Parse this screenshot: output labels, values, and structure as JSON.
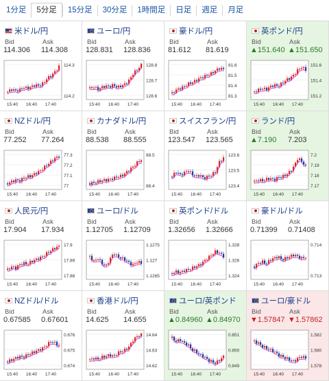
{
  "tabs": [
    "1分足",
    "5分足",
    "15分足",
    "30分足",
    "1時間足",
    "日足",
    "週足",
    "月足"
  ],
  "active_tab": 1,
  "colors": {
    "up_candle": "#e02020",
    "down_candle": "#1a3f9b",
    "ma_line": "#c33cc3",
    "link": "#1c3f8c",
    "up_text": "#2a7a2a",
    "down_text": "#c42222"
  },
  "labels": {
    "bid": "Bid",
    "ask": "Ask"
  },
  "x_ticks": [
    "15:40",
    "16:40",
    "17:40"
  ],
  "pairs": [
    {
      "name": "米ドル/円",
      "flag": "us",
      "bid": "114.306",
      "ask": "114.308",
      "trend": "none",
      "y_ticks": [
        "114.3",
        "114.2"
      ],
      "shape": [
        0.15,
        0.22,
        0.18,
        0.2,
        0.28,
        0.25,
        0.3,
        0.35,
        0.33,
        0.4,
        0.55,
        0.62,
        0.75,
        0.9
      ]
    },
    {
      "name": "ユーロ/円",
      "flag": "eu",
      "bid": "128.831",
      "ask": "128.836",
      "trend": "none",
      "y_ticks": [
        "128.8",
        "128.7",
        "128.6"
      ],
      "shape": [
        0.25,
        0.3,
        0.22,
        0.28,
        0.32,
        0.3,
        0.35,
        0.28,
        0.33,
        0.38,
        0.5,
        0.7,
        0.8,
        0.95
      ]
    },
    {
      "name": "豪ドル/円",
      "flag": "au",
      "bid": "81.612",
      "ask": "81.619",
      "trend": "none",
      "y_ticks": [
        "81.6",
        "81.5",
        "81.4",
        "81.3"
      ],
      "shape": [
        0.1,
        0.2,
        0.25,
        0.3,
        0.38,
        0.42,
        0.48,
        0.55,
        0.6,
        0.65,
        0.7,
        0.78,
        0.85,
        0.82
      ]
    },
    {
      "name": "英ポンド/円",
      "flag": "gb",
      "bid": "▲151.640",
      "ask": "▲151.650",
      "trend": "up",
      "y_ticks": [
        "151.6",
        "151.4",
        "151.2"
      ],
      "shape": [
        0.15,
        0.2,
        0.25,
        0.22,
        0.3,
        0.35,
        0.32,
        0.4,
        0.5,
        0.55,
        0.65,
        0.8,
        0.88,
        0.8
      ]
    },
    {
      "name": "NZドル/円",
      "flag": "nz",
      "bid": "77.252",
      "ask": "77.264",
      "trend": "none",
      "y_ticks": [
        "77.3",
        "77.2",
        "77.1",
        "77"
      ],
      "shape": [
        0.1,
        0.15,
        0.2,
        0.18,
        0.25,
        0.3,
        0.32,
        0.4,
        0.45,
        0.55,
        0.65,
        0.75,
        0.85,
        0.9
      ]
    },
    {
      "name": "カナダドル/円",
      "flag": "ca",
      "bid": "88.538",
      "ask": "88.555",
      "trend": "none",
      "y_ticks": [
        "88.5",
        "88.4"
      ],
      "shape": [
        0.1,
        0.12,
        0.15,
        0.18,
        0.2,
        0.22,
        0.25,
        0.3,
        0.32,
        0.4,
        0.5,
        0.6,
        0.72,
        0.8
      ]
    },
    {
      "name": "スイスフラン/円",
      "flag": "ch",
      "bid": "123.547",
      "ask": "123.565",
      "trend": "none",
      "y_ticks": [
        "123.6",
        "123.5",
        "123.4"
      ],
      "shape": [
        0.3,
        0.45,
        0.35,
        0.4,
        0.5,
        0.38,
        0.3,
        0.35,
        0.25,
        0.3,
        0.35,
        0.45,
        0.75,
        0.85
      ]
    },
    {
      "name": "ランド/円",
      "flag": "za",
      "bid": "▲7.190",
      "ask": "7.203",
      "trend": "up",
      "y_ticks": [
        "7.2",
        "7.19",
        "7.18",
        "7.17"
      ],
      "shape": [
        0.15,
        0.2,
        0.18,
        0.22,
        0.25,
        0.2,
        0.28,
        0.3,
        0.35,
        0.45,
        0.6,
        0.85,
        0.75,
        0.6
      ]
    },
    {
      "name": "人民元/円",
      "flag": "cn",
      "bid": "17.904",
      "ask": "17.934",
      "trend": "none",
      "y_ticks": [
        "17.9",
        "17.89",
        "17.88"
      ],
      "shape": [
        0.2,
        0.3,
        0.25,
        0.35,
        0.4,
        0.38,
        0.45,
        0.5,
        0.55,
        0.6,
        0.7,
        0.78,
        0.85,
        0.9
      ]
    },
    {
      "name": "ユーロ/ドル",
      "flag": "eu",
      "bid": "1.12705",
      "ask": "1.12709",
      "trend": "none",
      "y_ticks": [
        "1.1275",
        "1.127",
        "1.1265"
      ],
      "shape": [
        0.6,
        0.45,
        0.55,
        0.4,
        0.3,
        0.5,
        0.7,
        0.6,
        0.55,
        0.5,
        0.4,
        0.35,
        0.45,
        0.4
      ]
    },
    {
      "name": "英ポンド/ドル",
      "flag": "gb",
      "bid": "1.32656",
      "ask": "1.32666",
      "trend": "none",
      "y_ticks": [
        "1.328",
        "1.326",
        "1.324"
      ],
      "shape": [
        0.1,
        0.15,
        0.12,
        0.18,
        0.2,
        0.25,
        0.3,
        0.35,
        0.45,
        0.55,
        0.65,
        0.75,
        0.7,
        0.6
      ]
    },
    {
      "name": "豪ドル/ドル",
      "flag": "au",
      "bid": "0.71399",
      "ask": "0.71408",
      "trend": "none",
      "y_ticks": [
        "0.714",
        "0.713"
      ],
      "shape": [
        0.3,
        0.4,
        0.45,
        0.38,
        0.5,
        0.55,
        0.6,
        0.5,
        0.55,
        0.6,
        0.65,
        0.6,
        0.55,
        0.58
      ]
    },
    {
      "name": "NZドル/ドル",
      "flag": "nz",
      "bid": "0.67585",
      "ask": "0.67601",
      "trend": "none",
      "y_ticks": [
        "0.676",
        "0.675",
        "0.674"
      ],
      "shape": [
        0.15,
        0.2,
        0.25,
        0.3,
        0.28,
        0.35,
        0.4,
        0.45,
        0.5,
        0.55,
        0.65,
        0.75,
        0.7,
        0.62
      ]
    },
    {
      "name": "香港ドル/円",
      "flag": "hk",
      "bid": "14.625",
      "ask": "14.655",
      "trend": "none",
      "y_ticks": [
        "14.64",
        "14.63",
        "14.62"
      ],
      "shape": [
        0.2,
        0.25,
        0.22,
        0.28,
        0.3,
        0.35,
        0.3,
        0.4,
        0.45,
        0.5,
        0.6,
        0.8,
        0.9,
        0.95
      ]
    },
    {
      "name": "ユーロ/英ポンド",
      "flag": "eu",
      "bid": "▲0.84960",
      "ask": "▲0.84970",
      "trend": "up",
      "y_ticks": [
        "0.851",
        "0.850",
        "0.849"
      ],
      "shape": [
        0.85,
        0.75,
        0.8,
        0.7,
        0.65,
        0.5,
        0.45,
        0.35,
        0.3,
        0.2,
        0.15,
        0.1,
        0.2,
        0.3
      ]
    },
    {
      "name": "ユーロ/豪ドル",
      "flag": "eu",
      "bid": "▼1.57847",
      "ask": "▼1.57862",
      "trend": "down",
      "y_ticks": [
        "1.582",
        "1.580",
        "1.578"
      ],
      "shape": [
        0.75,
        0.7,
        0.6,
        0.55,
        0.5,
        0.45,
        0.35,
        0.3,
        0.25,
        0.2,
        0.15,
        0.25,
        0.3,
        0.25
      ]
    }
  ]
}
